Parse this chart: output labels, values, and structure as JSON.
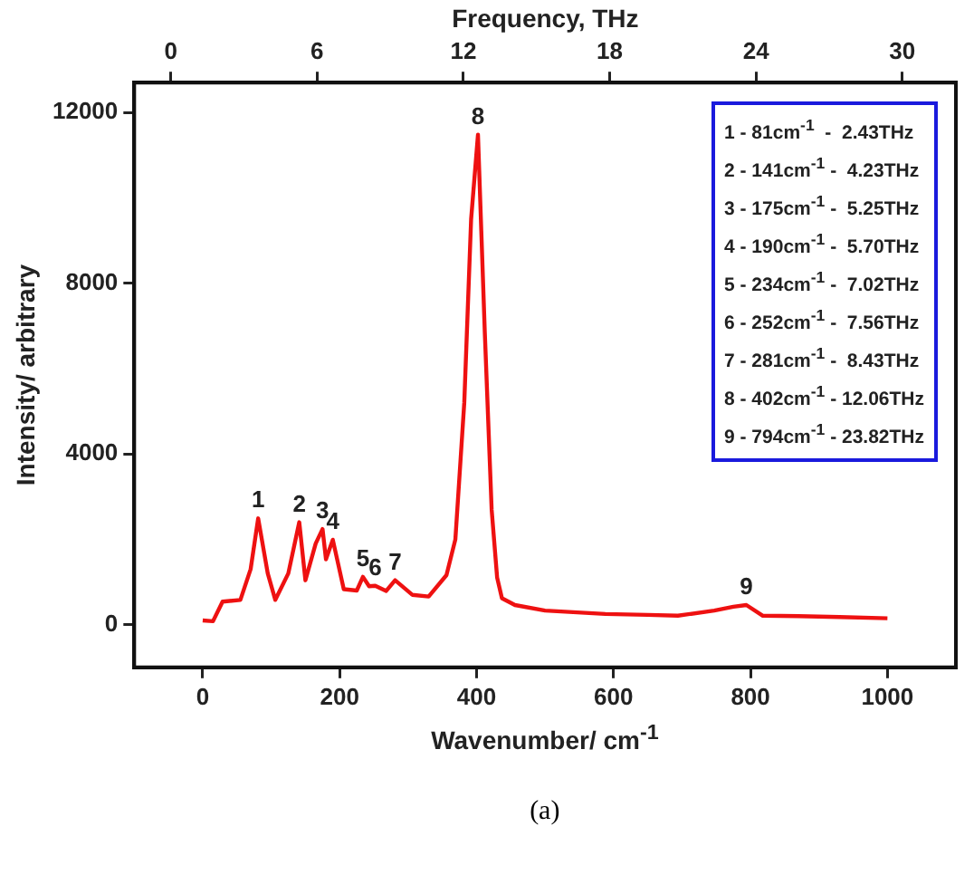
{
  "chart_data": {
    "type": "line",
    "xlabel": "Wavenumber/ cm$^{-1}$",
    "ylabel": "Intensity/ arbitrary",
    "x2label": "Frequency, THz",
    "x": [
      0,
      15,
      29,
      55,
      70,
      81,
      95,
      106,
      125,
      141,
      150,
      165,
      175,
      180,
      190,
      206,
      225,
      234,
      243,
      252,
      268,
      281,
      306,
      330,
      356,
      369,
      382,
      392,
      402,
      412,
      422,
      430,
      437,
      456,
      500,
      588,
      650,
      694,
      747,
      775,
      794,
      818,
      870,
      930,
      1000
    ],
    "series": [
      {
        "color": "#ee1111",
        "values": [
          100,
          80,
          540,
          580,
          1300,
          2490,
          1200,
          580,
          1200,
          2400,
          1040,
          1900,
          2240,
          1530,
          1990,
          830,
          800,
          1120,
          900,
          910,
          790,
          1040,
          700,
          660,
          1160,
          2000,
          5200,
          9500,
          11480,
          6840,
          2690,
          1100,
          620,
          460,
          330,
          250,
          230,
          210,
          330,
          420,
          460,
          210,
          200,
          180,
          150
        ]
      }
    ],
    "xlim": [
      -100,
      1100
    ],
    "xticks": [
      0,
      200,
      400,
      600,
      800,
      1000
    ],
    "ylim": [
      -1000,
      12700
    ],
    "yticks": [
      0,
      4000,
      8000,
      12000
    ],
    "x2lim": [
      -1.5,
      32.2
    ],
    "x2ticks": [
      0,
      6,
      12,
      18,
      24,
      30
    ],
    "grid": false,
    "legend": false,
    "marker": "none",
    "line_style": "solid",
    "annotations": [
      {
        "text": "1",
        "x": 81,
        "y": 2490
      },
      {
        "text": "2",
        "x": 141,
        "y": 2400
      },
      {
        "text": "3",
        "x": 175,
        "y": 2240
      },
      {
        "text": "4",
        "x": 190,
        "y": 1990
      },
      {
        "text": "5",
        "x": 234,
        "y": 1120
      },
      {
        "text": "6",
        "x": 252,
        "y": 910
      },
      {
        "text": "7",
        "x": 281,
        "y": 1040
      },
      {
        "text": "8",
        "x": 402,
        "y": 11480
      },
      {
        "text": "9",
        "x": 794,
        "y": 460
      },
      "1 - 81cm$^{-1}$  -  2.43THz",
      "2 - 141cm$^{-1}$ -  4.23THz",
      "3 - 175cm$^{-1}$ -  5.25THz",
      "4 - 190cm$^{-1}$ -  5.70THz",
      "5 - 234cm$^{-1}$ -  7.02THz",
      "6 - 252cm$^{-1}$ -  7.56THz",
      "7 - 281cm$^{-1}$ -  8.43THz",
      "8 - 402cm$^{-1}$ - 12.06THz",
      "9 - 794cm$^{-1}$ - 23.82THz",
      "(a)"
    ]
  }
}
